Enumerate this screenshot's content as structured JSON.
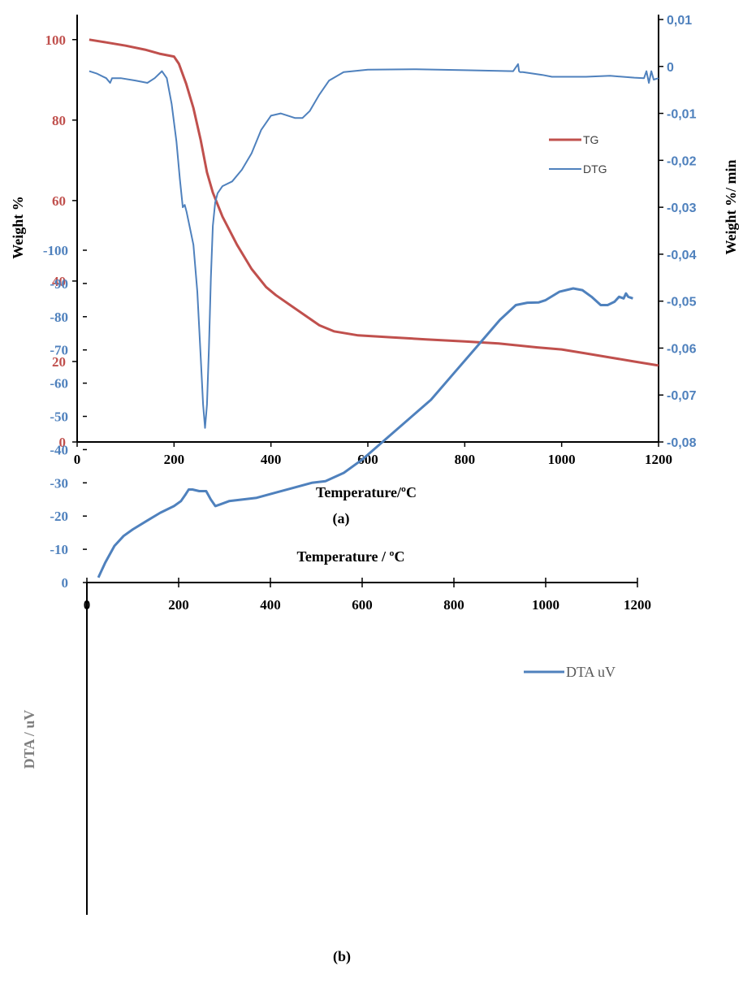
{
  "chart_data": [
    {
      "type": "line",
      "panel_label": "(a)",
      "xlabel": "Temperature/ºC",
      "ylabel_left": "Weight %",
      "ylabel_right": "Weight %/ min",
      "xlim": [
        0,
        1200
      ],
      "ylim_left": [
        0,
        105
      ],
      "ylim_right": [
        -0.08,
        0.01
      ],
      "x_ticks": [
        "0",
        "200",
        "400",
        "600",
        "800",
        "1000",
        "1200"
      ],
      "y_left_ticks": [
        "0",
        "20",
        "40",
        "60",
        "80",
        "100"
      ],
      "y_right_ticks": [
        "0,01",
        "0",
        "-0,01",
        "-0,02",
        "-0,03",
        "-0,04",
        "-0,05",
        "-0,06",
        "-0,07",
        "-0,08"
      ],
      "grid": false,
      "legend_position": "right-middle",
      "colors": {
        "tg": "#c0504d",
        "dtg": "#4f81bd",
        "left_axis_text": "#c0504d",
        "right_axis_text": "#4f81bd"
      },
      "series": [
        {
          "name": "TG",
          "axis": "left",
          "x": [
            25,
            60,
            100,
            140,
            170,
            200,
            210,
            225,
            240,
            255,
            268,
            280,
            300,
            330,
            360,
            390,
            410,
            440,
            470,
            500,
            530,
            580,
            650,
            720,
            800,
            870,
            950,
            1000,
            1050,
            1100,
            1150,
            1200
          ],
          "y": [
            100,
            99.3,
            98.5,
            97.5,
            96.5,
            95.8,
            94,
            89,
            83,
            75,
            67,
            62,
            56,
            49,
            43,
            38.5,
            36.5,
            34,
            31.5,
            29,
            27.5,
            26.5,
            26,
            25.5,
            25,
            24.5,
            23.5,
            23,
            22,
            21,
            20,
            19
          ]
        },
        {
          "name": "DTG",
          "axis": "right",
          "x": [
            25,
            40,
            60,
            68,
            72,
            90,
            120,
            145,
            160,
            175,
            185,
            195,
            205,
            212,
            218,
            222,
            226,
            232,
            240,
            248,
            255,
            260,
            264,
            268,
            272,
            276,
            280,
            285,
            290,
            300,
            320,
            340,
            360,
            380,
            400,
            420,
            435,
            450,
            465,
            480,
            500,
            520,
            550,
            600,
            700,
            800,
            900,
            910,
            912,
            914,
            920,
            960,
            980,
            1050,
            1100,
            1150,
            1170,
            1175,
            1180,
            1185,
            1190,
            1200
          ],
          "y": [
            -0.001,
            -0.0015,
            -0.0025,
            -0.0035,
            -0.0025,
            -0.0025,
            -0.003,
            -0.0035,
            -0.0025,
            -0.001,
            -0.0025,
            -0.008,
            -0.016,
            -0.024,
            -0.03,
            -0.0295,
            -0.031,
            -0.034,
            -0.038,
            -0.048,
            -0.062,
            -0.072,
            -0.077,
            -0.072,
            -0.06,
            -0.045,
            -0.034,
            -0.029,
            -0.027,
            -0.0255,
            -0.0245,
            -0.022,
            -0.0185,
            -0.0135,
            -0.0105,
            -0.01,
            -0.0105,
            -0.011,
            -0.011,
            -0.0095,
            -0.006,
            -0.003,
            -0.0012,
            -0.0007,
            -0.0006,
            -0.0008,
            -0.001,
            0.0005,
            -0.001,
            -0.0012,
            -0.0012,
            -0.0018,
            -0.0022,
            -0.0022,
            -0.002,
            -0.0024,
            -0.0025,
            -0.001,
            -0.0035,
            -0.001,
            -0.0028,
            -0.0025
          ]
        }
      ]
    },
    {
      "type": "line",
      "panel_label": "(b)",
      "xlabel": "Temperature  / ºC",
      "ylabel": "DTA / uV",
      "xlim": [
        0,
        1200
      ],
      "ylim": [
        -100,
        0
      ],
      "x_ticks": [
        "0",
        "200",
        "400",
        "600",
        "800",
        "1000",
        "1200"
      ],
      "y_ticks": [
        "0",
        "-10",
        "-20",
        "-30",
        "-40",
        "-50",
        "-60",
        "-70",
        "-80",
        "-90",
        "-100"
      ],
      "x_axis_position": "top",
      "grid": false,
      "legend_position": "right-top",
      "colors": {
        "dta": "#4f81bd",
        "y_axis_text": "#4f81bd"
      },
      "series": [
        {
          "name": "DTA uV",
          "x": [
            25,
            40,
            60,
            80,
            100,
            130,
            160,
            190,
            205,
            215,
            222,
            230,
            245,
            260,
            270,
            280,
            290,
            310,
            340,
            370,
            410,
            450,
            490,
            520,
            560,
            600,
            650,
            700,
            750,
            800,
            850,
            900,
            935,
            960,
            985,
            1000,
            1030,
            1060,
            1080,
            1100,
            1120,
            1135,
            1150,
            1160,
            1170,
            1175,
            1180,
            1190
          ],
          "y": [
            -1.5,
            -6,
            -11,
            -14,
            -16,
            -18.5,
            -21,
            -23,
            -24.5,
            -26.5,
            -28,
            -28,
            -27.5,
            -27.5,
            -25,
            -23,
            -23.5,
            -24.5,
            -25,
            -25.5,
            -27,
            -28.5,
            -30,
            -30.5,
            -33,
            -37,
            -43,
            -49,
            -55,
            -63,
            -71,
            -79,
            -83.5,
            -84.2,
            -84.3,
            -85,
            -87.5,
            -88.5,
            -88,
            -86,
            -83.5,
            -83.5,
            -84.5,
            -86,
            -85.5,
            -87,
            -86,
            -85.5
          ]
        }
      ]
    }
  ]
}
